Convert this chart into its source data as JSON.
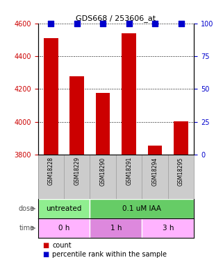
{
  "title": "GDS668 / 253606_at",
  "samples": [
    "GSM18228",
    "GSM18229",
    "GSM18290",
    "GSM18291",
    "GSM18294",
    "GSM18295"
  ],
  "counts": [
    4510,
    4280,
    4175,
    4540,
    3855,
    4005
  ],
  "percentiles": [
    100,
    100,
    100,
    100,
    100,
    100
  ],
  "ylim_left": [
    3800,
    4600
  ],
  "ylim_right": [
    0,
    100
  ],
  "yticks_left": [
    3800,
    4000,
    4200,
    4400,
    4600
  ],
  "yticks_right": [
    0,
    25,
    50,
    75,
    100
  ],
  "bar_color": "#cc0000",
  "dot_color": "#0000cc",
  "dose_groups": [
    {
      "label": "untreated",
      "start": 0,
      "end": 2,
      "color": "#90ee90"
    },
    {
      "label": "0.1 uM IAA",
      "start": 2,
      "end": 6,
      "color": "#66cc66"
    }
  ],
  "time_groups": [
    {
      "label": "0 h",
      "start": 0,
      "end": 2,
      "color": "#ffb3ff"
    },
    {
      "label": "1 h",
      "start": 2,
      "end": 4,
      "color": "#dd88dd"
    },
    {
      "label": "3 h",
      "start": 4,
      "end": 6,
      "color": "#ffb3ff"
    }
  ],
  "left_label_color": "#cc0000",
  "right_label_color": "#0000cc",
  "dose_label": "dose",
  "time_label": "time",
  "background_color": "#ffffff",
  "bar_width": 0.55,
  "dot_size": 30,
  "sample_panel_color": "#cccccc",
  "sample_divider_color": "#aaaaaa"
}
